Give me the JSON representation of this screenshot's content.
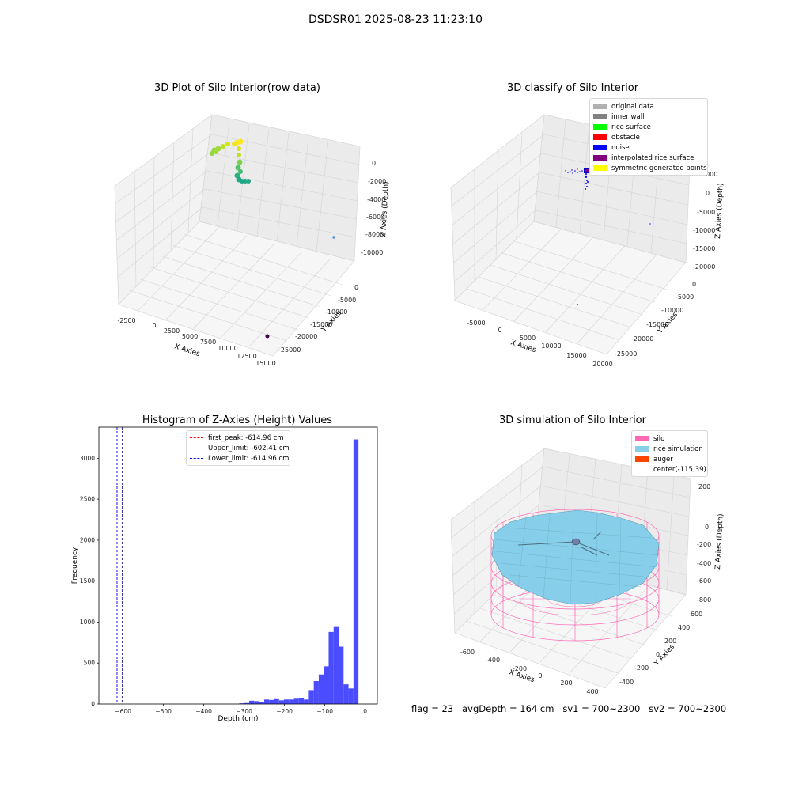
{
  "suptitle": "DSDSR01 2025-08-23 11:23:10",
  "colors": {
    "original": "#b0b0b0",
    "inner_wall": "#808080",
    "rice_surface": "#00ff00",
    "obstacle": "#ff0000",
    "noise": "#0000ff",
    "interpolated": "#800080",
    "symmetric": "#ffff00",
    "silo": "#ff69b4",
    "rice_sim": "#87ceeb",
    "auger": "#ff4500",
    "hist_bar": "#4b4bff"
  },
  "raw_plot": {
    "title": "3D Plot of Silo Interior(row data)",
    "xlabel": "X Axies",
    "ylabel": "Y Axies",
    "zlabel": "Z Axies (Depth)",
    "x_ticks": [
      "-2500",
      "0",
      "2500",
      "5000",
      "7500",
      "10000",
      "12500",
      "15000"
    ],
    "y_ticks": [
      "0",
      "-5000",
      "-10000",
      "-15000",
      "-20000",
      "-25000"
    ],
    "z_ticks": [
      "0",
      "-2000",
      "-4000",
      "-6000",
      "-8000",
      "-10000"
    ]
  },
  "classify_plot": {
    "title": "3D classify of Silo Interior",
    "xlabel": "X Axies",
    "ylabel": "Y Axies",
    "zlabel": "Z Axies (Depth)",
    "x_ticks": [
      "-5000",
      "0",
      "5000",
      "10000",
      "15000",
      "20000"
    ],
    "y_ticks": [
      "0",
      "-5000",
      "-10000",
      "-15000",
      "-20000",
      "-25000"
    ],
    "z_ticks": [
      "5000",
      "0",
      "-5000",
      "-10000",
      "-15000",
      "-20000"
    ],
    "legend": [
      "original data",
      "inner wall",
      "rice surface",
      "obstacle",
      "noise",
      "interpolated rice surface",
      "symmetric generated points"
    ]
  },
  "simulation_plot": {
    "title": "3D simulation of Silo Interior",
    "xlabel": "X Axies",
    "ylabel": "Y Axies",
    "zlabel": "Z Axies (Depth)",
    "x_ticks": [
      "-600",
      "-400",
      "-200",
      "0",
      "200",
      "400"
    ],
    "y_ticks": [
      "600",
      "400",
      "200",
      "0",
      "-200",
      "-400"
    ],
    "z_ticks": [
      "200",
      "0",
      "-200",
      "-400",
      "-600",
      "-800"
    ],
    "legend": [
      "silo",
      "rice simulation",
      "auger",
      "center(-115,39)"
    ]
  },
  "chart_data": {
    "type": "bar",
    "title": "Histogram of Z-Axies (Height) Values",
    "xlabel": "Depth (cm)",
    "ylabel": "Frequency",
    "xlim": [
      -660,
      30
    ],
    "ylim": [
      0,
      3380
    ],
    "x_ticks": [
      -600,
      -500,
      -400,
      -300,
      -200,
      -100,
      0
    ],
    "x_tick_labels": [
      "−600",
      "−500",
      "−400",
      "−300",
      "−200",
      "−100",
      "0"
    ],
    "y_ticks": [
      0,
      500,
      1000,
      1500,
      2000,
      2500,
      3000
    ],
    "bin_width": 12.3,
    "bin_starts": [
      -312,
      -299.7,
      -287.4,
      -275.1,
      -262.8,
      -250.5,
      -238.2,
      -225.9,
      -213.6,
      -201.3,
      -189,
      -176.7,
      -164.4,
      -152.1,
      -139.8,
      -127.5,
      -115.2,
      -102.9,
      -90.6,
      -78.3,
      -66,
      -53.7,
      -41.4,
      -29.1,
      -16.8,
      -4.5
    ],
    "values": [
      8,
      12,
      40,
      35,
      25,
      55,
      50,
      60,
      45,
      55,
      55,
      65,
      75,
      55,
      170,
      280,
      360,
      460,
      880,
      940,
      700,
      240,
      190,
      3230,
      0,
      0
    ],
    "vlines": [
      {
        "label": "first_peak: -614.96 cm",
        "x": -614.96,
        "color": "#ff0000"
      },
      {
        "label": "Upper_limit: -602.41 cm",
        "x": -602.41,
        "color": "#00008b"
      },
      {
        "label": "Lower_limit: -614.96 cm",
        "x": -614.96,
        "color": "#0000ff"
      }
    ],
    "grid": false,
    "legend_position": "upper center"
  },
  "footer": "flag = 23   avgDepth = 164 cm   sv1 = 700~2300   sv2 = 700~2300"
}
